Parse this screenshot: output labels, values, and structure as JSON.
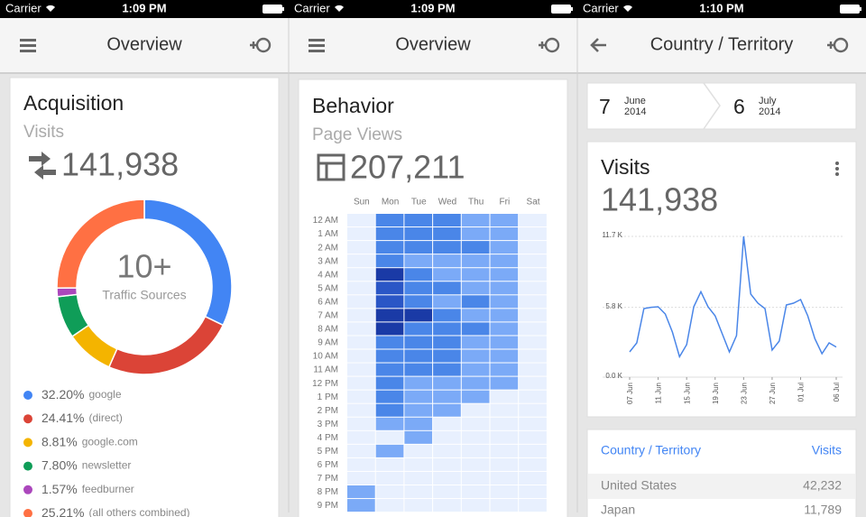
{
  "screens": [
    {
      "carrier": "Carrier",
      "time": "1:09 PM",
      "title": "Overview"
    },
    {
      "carrier": "Carrier",
      "time": "1:09 PM",
      "title": "Overview"
    },
    {
      "carrier": "Carrier",
      "time": "1:10 PM",
      "title": "Country / Territory"
    }
  ],
  "acquisition": {
    "title": "Acquisition",
    "metric": "Visits",
    "total": "141,938",
    "center_value": "10+",
    "center_label": "Traffic Sources"
  },
  "behavior": {
    "title": "Behavior",
    "metric": "Page Views",
    "total": "207,211"
  },
  "date_range": {
    "start": {
      "day": "7",
      "month": "June",
      "year": "2014"
    },
    "end": {
      "day": "6",
      "month": "July",
      "year": "2014"
    }
  },
  "visits_card": {
    "title": "Visits",
    "total": "141,938"
  },
  "table": {
    "header": [
      "Country / Territory",
      "Visits"
    ],
    "rows": [
      [
        "United States",
        "42,232"
      ],
      [
        "Japan",
        "11,789"
      ]
    ]
  },
  "chart_data": [
    {
      "type": "donut",
      "categories": [
        "google",
        "(direct)",
        "google.com",
        "newsletter",
        "feedburner",
        "(all others combined)"
      ],
      "values": [
        32.2,
        24.41,
        8.81,
        7.8,
        1.57,
        25.21
      ],
      "value_labels": [
        "32.20%",
        "24.41%",
        "8.81%",
        "7.80%",
        "1.57%",
        "25.21%"
      ],
      "colors": [
        "#4285f4",
        "#db4437",
        "#f4b400",
        "#0f9d58",
        "#ab47bc",
        "#ff7043"
      ]
    },
    {
      "type": "heatmap",
      "x_categories": [
        "Sun",
        "Mon",
        "Tue",
        "Wed",
        "Thu",
        "Fri",
        "Sat"
      ],
      "y_categories": [
        "12 AM",
        "1 AM",
        "2 AM",
        "3 AM",
        "4 AM",
        "5 AM",
        "6 AM",
        "7 AM",
        "8 AM",
        "9 AM",
        "10 AM",
        "11 AM",
        "12 PM",
        "1 PM",
        "2 PM",
        "3 PM",
        "4 PM",
        "5 PM",
        "6 PM",
        "7 PM",
        "8 PM",
        "9 PM"
      ],
      "colorscale": [
        "#e8f0fe",
        "#a4c2f4",
        "#7baaf7",
        "#4a86e8",
        "#2a56c6",
        "#1a3aa6"
      ],
      "values": [
        [
          0,
          3,
          3,
          3,
          2,
          2,
          0
        ],
        [
          0,
          3,
          3,
          3,
          2,
          2,
          0
        ],
        [
          0,
          3,
          3,
          3,
          3,
          2,
          0
        ],
        [
          0,
          3,
          2,
          2,
          2,
          2,
          0
        ],
        [
          0,
          5,
          3,
          2,
          2,
          2,
          0
        ],
        [
          0,
          4,
          3,
          3,
          2,
          2,
          0
        ],
        [
          0,
          4,
          3,
          2,
          3,
          2,
          0
        ],
        [
          0,
          5,
          5,
          3,
          2,
          2,
          0
        ],
        [
          0,
          5,
          3,
          3,
          3,
          2,
          0
        ],
        [
          0,
          3,
          3,
          3,
          2,
          2,
          0
        ],
        [
          0,
          3,
          3,
          3,
          2,
          2,
          0
        ],
        [
          0,
          3,
          3,
          3,
          2,
          2,
          0
        ],
        [
          0,
          3,
          2,
          2,
          2,
          2,
          0
        ],
        [
          0,
          3,
          2,
          2,
          2,
          0,
          0
        ],
        [
          0,
          3,
          2,
          2,
          0,
          0,
          0
        ],
        [
          0,
          2,
          2,
          0,
          0,
          0,
          0
        ],
        [
          0,
          0,
          2,
          0,
          0,
          0,
          0
        ],
        [
          0,
          2,
          0,
          0,
          0,
          0,
          0
        ],
        [
          0,
          0,
          0,
          0,
          0,
          0,
          0
        ],
        [
          0,
          0,
          0,
          0,
          0,
          0,
          0
        ],
        [
          2,
          0,
          0,
          0,
          0,
          0,
          0
        ],
        [
          2,
          0,
          0,
          0,
          0,
          0,
          0
        ]
      ]
    },
    {
      "type": "line",
      "categories": [
        "07 Jun",
        null,
        null,
        null,
        "11 Jun",
        null,
        null,
        null,
        "15 Jun",
        null,
        null,
        null,
        "19 Jun",
        null,
        null,
        null,
        "23 Jun",
        null,
        null,
        null,
        "27 Jun",
        null,
        null,
        null,
        "01 Jul",
        null,
        null,
        null,
        null,
        "06 Jul"
      ],
      "values": [
        2100,
        2850,
        5700,
        5800,
        5850,
        5250,
        3750,
        1700,
        2700,
        5850,
        7100,
        5850,
        5100,
        3600,
        2100,
        3450,
        11700,
        6900,
        6150,
        5700,
        2250,
        3000,
        6000,
        6150,
        6450,
        5100,
        3200,
        1950,
        2850,
        2500
      ],
      "color": "#4a86e8",
      "ylim": [
        0,
        11700
      ],
      "yticks": [
        {
          "value": 0,
          "label": "0.0 K"
        },
        {
          "value": 5800,
          "label": "5.8 K"
        },
        {
          "value": 11700,
          "label": "11.7 K"
        }
      ],
      "grid": true
    }
  ]
}
